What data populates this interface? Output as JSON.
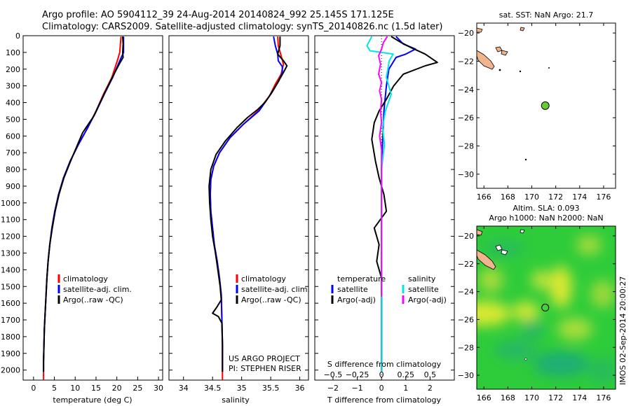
{
  "header": {
    "line1": "Argo profile: AO 5904112_39 24-Aug-2014 20140824_992 25.145S 171.125E",
    "line2": "Climatology: CARS2009. Satellite-adjusted climatology: synTS_20140826.nc (1.5d later)"
  },
  "colors": {
    "climatology": "#ff0000",
    "satellite": "#0000ff",
    "argo": "#000000",
    "t_sat": "#0000ff",
    "s_sat": "#00e6e6",
    "s_argo": "#ff00ff",
    "land": "#f2b48c",
    "dot_fill": "#66cc33",
    "field_green": "#2ecc3a",
    "field_yellow": "#d9e830"
  },
  "side_text": "IMOS 02-Sep-2014 20:00:27",
  "chart_data": [
    {
      "type": "line",
      "title": "",
      "xlabel": "temperature (deg C)",
      "ylabel": "",
      "xlim": [
        -2.5,
        31
      ],
      "ylim": [
        2060,
        0
      ],
      "x_ticks": [
        0,
        5,
        10,
        15,
        20,
        25,
        30
      ],
      "y_ticks": [
        0,
        100,
        200,
        300,
        400,
        500,
        600,
        700,
        800,
        900,
        1000,
        1100,
        1200,
        1300,
        1400,
        1500,
        1600,
        1700,
        1800,
        1900,
        2000
      ],
      "legend": [
        "climatology",
        "satellite-adj. clim.",
        "Argo(..raw -QC)"
      ],
      "series": [
        {
          "name": "climatology",
          "color": "#ff0000",
          "points": [
            [
              21.0,
              5
            ],
            [
              20.7,
              100
            ],
            [
              20.1,
              150
            ],
            [
              18.8,
              250
            ],
            [
              16.8,
              350
            ],
            [
              15.0,
              450
            ],
            [
              13.0,
              550
            ],
            [
              10.8,
              650
            ],
            [
              8.8,
              750
            ],
            [
              7.2,
              850
            ],
            [
              6.0,
              950
            ],
            [
              5.1,
              1050
            ],
            [
              4.4,
              1150
            ],
            [
              3.9,
              1250
            ],
            [
              3.5,
              1350
            ],
            [
              3.2,
              1450
            ],
            [
              3.0,
              1550
            ],
            [
              2.8,
              1650
            ],
            [
              2.6,
              1750
            ],
            [
              2.5,
              1850
            ],
            [
              2.4,
              1950
            ],
            [
              2.4,
              2060
            ]
          ]
        },
        {
          "name": "satellite-adj. clim.",
          "color": "#0000ff",
          "points": [
            [
              21.6,
              5
            ],
            [
              21.6,
              100
            ],
            [
              20.7,
              150
            ],
            [
              19.0,
              250
            ],
            [
              17.0,
              350
            ],
            [
              15.1,
              450
            ],
            [
              13.0,
              550
            ],
            [
              10.8,
              650
            ],
            [
              8.8,
              750
            ],
            [
              7.2,
              850
            ],
            [
              6.0,
              950
            ],
            [
              5.1,
              1050
            ],
            [
              4.4,
              1150
            ],
            [
              3.9,
              1250
            ],
            [
              3.5,
              1350
            ],
            [
              3.2,
              1450
            ],
            [
              3.0,
              1550
            ],
            [
              2.8,
              1650
            ],
            [
              2.6,
              1750
            ],
            [
              2.5,
              1850
            ],
            [
              2.4,
              1950
            ],
            [
              2.4,
              2010
            ]
          ]
        },
        {
          "name": "Argo(..raw -QC)",
          "color": "#000000",
          "points": [
            [
              21.4,
              5
            ],
            [
              21.5,
              50
            ],
            [
              21.4,
              100
            ],
            [
              21.5,
              130
            ],
            [
              20.8,
              160
            ],
            [
              19.3,
              230
            ],
            [
              17.5,
              320
            ],
            [
              15.6,
              420
            ],
            [
              14.5,
              480
            ],
            [
              13.4,
              520
            ],
            [
              11.8,
              580
            ],
            [
              10.6,
              650
            ],
            [
              8.9,
              750
            ],
            [
              7.3,
              850
            ],
            [
              6.1,
              950
            ],
            [
              5.2,
              1050
            ],
            [
              4.5,
              1150
            ],
            [
              3.9,
              1250
            ],
            [
              3.5,
              1350
            ],
            [
              3.2,
              1450
            ],
            [
              3.0,
              1550
            ],
            [
              2.8,
              1650
            ],
            [
              2.6,
              1750
            ],
            [
              2.5,
              1850
            ],
            [
              2.4,
              1950
            ],
            [
              2.4,
              2010
            ]
          ]
        }
      ]
    },
    {
      "type": "line",
      "title": "",
      "xlabel": "salinity",
      "ylabel": "",
      "xlim": [
        33.75,
        36.15
      ],
      "ylim": [
        2060,
        0
      ],
      "x_ticks": [
        34,
        34.5,
        35,
        35.5,
        36
      ],
      "legend": [
        "climatology",
        "satellite-adj. clim.",
        "Argo(..raw -QC)"
      ],
      "annotations": [
        "US ARGO PROJECT",
        "PI: STEPHEN RISER"
      ],
      "series": [
        {
          "name": "climatology",
          "color": "#ff0000",
          "points": [
            [
              35.62,
              5
            ],
            [
              35.63,
              60
            ],
            [
              35.68,
              120
            ],
            [
              35.72,
              170
            ],
            [
              35.68,
              230
            ],
            [
              35.58,
              290
            ],
            [
              35.48,
              360
            ],
            [
              35.28,
              450
            ],
            [
              35.03,
              530
            ],
            [
              34.8,
              610
            ],
            [
              34.62,
              700
            ],
            [
              34.52,
              780
            ],
            [
              34.47,
              860
            ],
            [
              34.46,
              950
            ],
            [
              34.47,
              1050
            ],
            [
              34.5,
              1150
            ],
            [
              34.53,
              1250
            ],
            [
              34.58,
              1350
            ],
            [
              34.62,
              1450
            ],
            [
              34.65,
              1550
            ],
            [
              34.66,
              1700
            ],
            [
              34.67,
              1850
            ],
            [
              34.67,
              2000
            ],
            [
              34.67,
              2060
            ]
          ]
        },
        {
          "name": "satellite-adj. clim.",
          "color": "#0000ff",
          "points": [
            [
              35.55,
              5
            ],
            [
              35.58,
              60
            ],
            [
              35.62,
              110
            ],
            [
              35.63,
              150
            ],
            [
              35.7,
              185
            ],
            [
              35.7,
              220
            ],
            [
              35.64,
              270
            ],
            [
              35.52,
              340
            ],
            [
              35.3,
              450
            ],
            [
              35.03,
              530
            ],
            [
              34.8,
              610
            ],
            [
              34.62,
              700
            ],
            [
              34.52,
              780
            ],
            [
              34.47,
              860
            ],
            [
              34.46,
              950
            ],
            [
              34.47,
              1050
            ],
            [
              34.5,
              1150
            ],
            [
              34.53,
              1250
            ],
            [
              34.58,
              1350
            ],
            [
              34.62,
              1450
            ],
            [
              34.65,
              1550
            ],
            [
              34.66,
              1700
            ],
            [
              34.67,
              1850
            ],
            [
              34.67,
              2010
            ]
          ]
        },
        {
          "name": "Argo(..raw -QC)",
          "color": "#000000",
          "points": [
            [
              35.66,
              5
            ],
            [
              35.66,
              60
            ],
            [
              35.62,
              110
            ],
            [
              35.72,
              150
            ],
            [
              35.78,
              180
            ],
            [
              35.72,
              220
            ],
            [
              35.62,
              280
            ],
            [
              35.5,
              350
            ],
            [
              35.4,
              400
            ],
            [
              35.28,
              440
            ],
            [
              35.1,
              490
            ],
            [
              34.92,
              550
            ],
            [
              34.72,
              630
            ],
            [
              34.56,
              710
            ],
            [
              34.47,
              800
            ],
            [
              34.44,
              900
            ],
            [
              34.45,
              1000
            ],
            [
              34.47,
              1100
            ],
            [
              34.5,
              1200
            ],
            [
              34.55,
              1300
            ],
            [
              34.59,
              1400
            ],
            [
              34.63,
              1500
            ],
            [
              34.65,
              1580
            ],
            [
              34.58,
              1620
            ],
            [
              34.5,
              1660
            ],
            [
              34.6,
              1680
            ],
            [
              34.66,
              1720
            ],
            [
              34.67,
              1850
            ],
            [
              34.67,
              2010
            ]
          ]
        }
      ]
    },
    {
      "type": "line",
      "title": "",
      "xlabel": "T difference from climatology",
      "x2label": "S difference from climatology",
      "ylabel": "",
      "xlim": [
        -2.75,
        3.0
      ],
      "x2lim": [
        -0.6875,
        0.75
      ],
      "ylim": [
        2060,
        0
      ],
      "x_ticks": [
        -2,
        -1,
        0,
        1,
        2
      ],
      "x2_ticks": [
        -0.5,
        -0.25,
        0,
        0.25,
        0.5
      ],
      "legend_headers": [
        "temperature",
        "salinity"
      ],
      "legend": [
        "satellite",
        "Argo(-adj)",
        "satellite",
        "Argo(-adj)"
      ],
      "series": [
        {
          "name": "satellite",
          "group": "temperature",
          "axis": "T",
          "color": "#0000ff",
          "points": [
            [
              0.6,
              5
            ],
            [
              0.9,
              50
            ],
            [
              1.4,
              80
            ],
            [
              1.0,
              110
            ],
            [
              0.6,
              130
            ],
            [
              0.3,
              200
            ],
            [
              0.2,
              300
            ],
            [
              0.1,
              450
            ],
            [
              0.05,
              600
            ],
            [
              0.0,
              800
            ],
            [
              0.0,
              1000
            ],
            [
              0.0,
              1500
            ],
            [
              0.0,
              2010
            ]
          ]
        },
        {
          "name": "Argo(-adj)",
          "group": "temperature",
          "axis": "T",
          "color": "#000000",
          "points": [
            [
              0.4,
              5
            ],
            [
              0.8,
              40
            ],
            [
              1.2,
              70
            ],
            [
              1.8,
              110
            ],
            [
              2.3,
              160
            ],
            [
              1.8,
              180
            ],
            [
              0.9,
              230
            ],
            [
              0.5,
              300
            ],
            [
              0.2,
              380
            ],
            [
              -0.1,
              450
            ],
            [
              -0.3,
              520
            ],
            [
              -0.4,
              620
            ],
            [
              -0.25,
              750
            ],
            [
              -0.1,
              850
            ],
            [
              0.1,
              950
            ],
            [
              0.2,
              1050
            ],
            [
              -0.3,
              1150
            ],
            [
              -0.1,
              1250
            ],
            [
              -0.2,
              1350
            ],
            [
              0.0,
              1450
            ],
            [
              0.0,
              1600
            ],
            [
              0.0,
              2010
            ]
          ]
        },
        {
          "name": "satellite",
          "group": "salinity",
          "axis": "S",
          "color": "#00e6e6",
          "points": [
            [
              -0.1,
              5
            ],
            [
              -0.15,
              60
            ],
            [
              -0.12,
              90
            ],
            [
              0.12,
              110
            ],
            [
              0.08,
              150
            ],
            [
              0.05,
              250
            ],
            [
              0.1,
              350
            ],
            [
              0.04,
              450
            ],
            [
              0.01,
              550
            ],
            [
              0.03,
              650
            ],
            [
              0.0,
              800
            ],
            [
              0.0,
              1000
            ],
            [
              0.0,
              1500
            ],
            [
              0.0,
              2010
            ]
          ]
        },
        {
          "name": "Argo(-adj)",
          "group": "salinity",
          "axis": "S",
          "color": "#ff00ff",
          "points": [
            [
              0.06,
              5
            ],
            [
              0.02,
              40
            ],
            [
              0.0,
              80
            ],
            [
              -0.03,
              120
            ],
            [
              -0.01,
              170
            ],
            [
              -0.03,
              230
            ],
            [
              0.0,
              280
            ],
            [
              -0.02,
              330
            ],
            [
              0.0,
              380
            ],
            [
              -0.01,
              450
            ],
            [
              0.0,
              520
            ],
            [
              -0.02,
              600
            ],
            [
              0.0,
              680
            ],
            [
              0.0,
              750
            ],
            [
              0.0,
              900
            ],
            [
              0.0,
              1200
            ],
            [
              0.0,
              1500
            ],
            [
              0.0,
              1560
            ]
          ]
        }
      ]
    },
    {
      "type": "scatter",
      "title": "sat. SST: NaN Argo: 21.7",
      "xlim": [
        165.4,
        177.0
      ],
      "ylim": [
        -31.0,
        -19.3
      ],
      "x_ticks": [
        166,
        168,
        170,
        172,
        174,
        176
      ],
      "y_ticks": [
        -20,
        -22,
        -24,
        -26,
        -28,
        -30
      ],
      "points": [
        [
          171.125,
          -25.145
        ]
      ]
    },
    {
      "type": "heatmap",
      "title_lines": [
        "Altim. SLA: 0.093",
        "Argo h1000: NaN h2000: NaN"
      ],
      "xlim": [
        165.4,
        177.0
      ],
      "ylim": [
        -31.0,
        -19.3
      ],
      "x_ticks": [
        166,
        168,
        170,
        172,
        174,
        176
      ],
      "y_ticks": [
        -20,
        -22,
        -24,
        -26,
        -28,
        -30
      ],
      "points": [
        [
          171.125,
          -25.145
        ]
      ]
    }
  ]
}
